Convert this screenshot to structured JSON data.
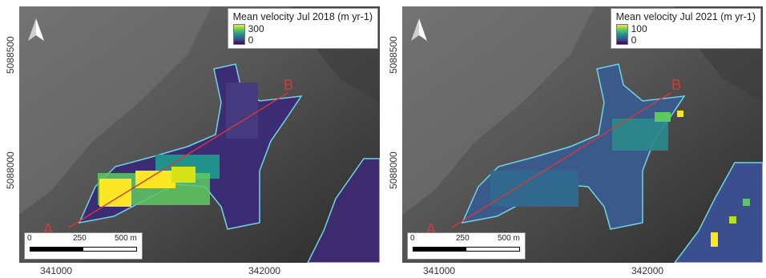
{
  "panels": [
    {
      "legend_title": "Mean velocity Jul 2018 (m yr-1)",
      "legend_max": "300",
      "legend_min": "0",
      "y_tick_top": "5088500",
      "y_tick_bottom": "5088000",
      "x_tick_left": "341000",
      "x_tick_right": "342000",
      "scale_0": "0",
      "scale_mid": "250",
      "scale_end": "500 m",
      "point_a": "A",
      "point_b": "B"
    },
    {
      "legend_title": "Mean velocity Jul 2021 (m yr-1)",
      "legend_max": "100",
      "legend_min": "0",
      "y_tick_top": "5088500",
      "y_tick_bottom": "5088000",
      "x_tick_left": "341000",
      "x_tick_right": "342000",
      "scale_0": "0",
      "scale_mid": "250",
      "scale_end": "500 m",
      "point_a": "A",
      "point_b": "B"
    }
  ],
  "colors": {
    "viridis_high": "#fde725",
    "viridis_mid": "#21918c",
    "viridis_low": "#440154",
    "outline": "#6fd6e6",
    "profile_line": "#d83838"
  }
}
